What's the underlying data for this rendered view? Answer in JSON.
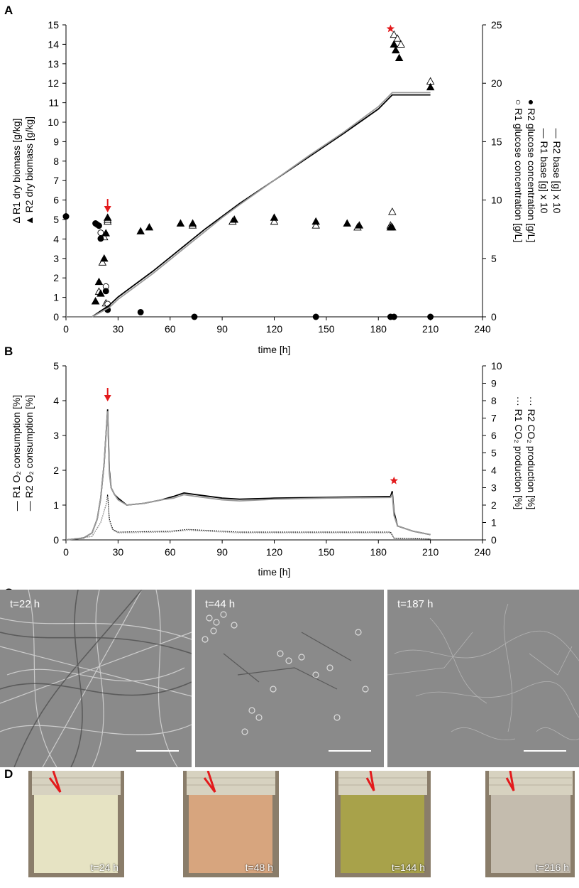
{
  "panels": {
    "A": "A",
    "B": "B",
    "C": "C",
    "D": "D"
  },
  "colors": {
    "r1": "#000000",
    "r2": "#9a9a9a",
    "accent": "#e31a1c",
    "micro_bg": "#8a8a8a",
    "photo_1": "#e6e3c3",
    "photo_2": "#d7a57e",
    "photo_3": "#a8a24a",
    "photo_4": "#c4bcae"
  },
  "chart_data": [
    {
      "id": "panel-A",
      "type": "scatter",
      "xlabel": "time [h]",
      "xlim": [
        0,
        240
      ],
      "xticks": [
        0,
        30,
        60,
        90,
        120,
        150,
        180,
        210,
        240
      ],
      "ylim_left": [
        0,
        15
      ],
      "yticks_left": [
        0,
        1,
        2,
        3,
        4,
        5,
        6,
        7,
        8,
        9,
        10,
        11,
        12,
        13,
        14,
        15
      ],
      "ylim_right": [
        0,
        25
      ],
      "yticks_right": [
        0,
        5,
        10,
        15,
        20,
        25
      ],
      "ylabel_left": [
        "Δ  R1 dry biomass [g/kg]",
        "▲  R2 dry biomass [g/kg]"
      ],
      "ylabel_right": [
        "○ R1 glucose concentration [g/L]",
        "●  R2 glucose concentration [g/L]",
        "—  R1 base [g] x 10",
        "—  R2 base [g] x 10"
      ],
      "series": [
        {
          "name": "R1 dry biomass [g/kg]",
          "marker": "open-triangle",
          "axis": "left",
          "x": [
            17,
            19,
            21,
            22,
            23,
            24,
            24,
            73,
            96,
            120,
            144,
            168,
            187,
            188,
            189,
            191,
            193,
            210
          ],
          "y": [
            0.8,
            1.3,
            2.8,
            4.1,
            0.7,
            4.9,
            5.0,
            4.7,
            4.9,
            4.9,
            4.7,
            4.6,
            4.7,
            5.4,
            14.5,
            14.3,
            14.0,
            12.1
          ]
        },
        {
          "name": "R2 dry biomass [g/kg]",
          "marker": "filled-triangle",
          "axis": "left",
          "x": [
            17,
            19,
            20,
            22,
            23,
            24,
            43,
            48,
            66,
            73,
            97,
            120,
            144,
            162,
            169,
            187,
            188,
            189,
            190,
            192,
            210
          ],
          "y": [
            0.8,
            1.8,
            1.2,
            3.0,
            4.3,
            5.1,
            4.4,
            4.6,
            4.8,
            4.8,
            5.0,
            5.1,
            4.9,
            4.8,
            4.7,
            4.6,
            4.6,
            14.0,
            13.7,
            13.3,
            11.8
          ]
        },
        {
          "name": "R1 glucose concentration [g/L]",
          "marker": "open-circle",
          "axis": "right",
          "x": [
            0,
            18,
            20,
            23,
            24
          ],
          "y": [
            8.6,
            7.9,
            7.2,
            2.6,
            1.1
          ]
        },
        {
          "name": "R2 glucose concentration [g/L]",
          "marker": "filled-circle",
          "axis": "right",
          "x": [
            0,
            17,
            19,
            20,
            23,
            24,
            43,
            74,
            144,
            187,
            189,
            210
          ],
          "y": [
            8.6,
            8.0,
            7.8,
            6.7,
            2.2,
            0.6,
            0.4,
            0.0,
            0.0,
            0.0,
            0.0,
            0.0
          ]
        },
        {
          "name": "R1 base [g] x 10",
          "marker": "line",
          "axis": "right",
          "x": [
            0,
            15,
            20,
            25,
            30,
            40,
            50,
            60,
            70,
            80,
            90,
            100,
            120,
            140,
            160,
            180,
            188,
            210
          ],
          "y": [
            0,
            0,
            0.5,
            1.0,
            1.7,
            2.8,
            3.9,
            5.1,
            6.3,
            7.5,
            8.6,
            9.7,
            11.7,
            13.7,
            15.7,
            17.8,
            19.0,
            19.0
          ]
        },
        {
          "name": "R2 base [g] x 10",
          "marker": "line",
          "axis": "right",
          "x": [
            0,
            15,
            20,
            25,
            30,
            40,
            50,
            60,
            70,
            80,
            90,
            100,
            120,
            140,
            160,
            180,
            188,
            210
          ],
          "y": [
            0,
            0,
            0.4,
            0.8,
            1.5,
            2.6,
            3.7,
            4.9,
            6.1,
            7.3,
            8.5,
            9.6,
            11.7,
            13.8,
            15.8,
            18.0,
            19.2,
            19.2
          ]
        }
      ],
      "annotations": [
        {
          "type": "red-arrow",
          "x": 24,
          "y": 5.4
        },
        {
          "type": "red-star",
          "x": 187,
          "y": 14.8
        }
      ]
    },
    {
      "id": "panel-B",
      "type": "line",
      "xlabel": "time [h]",
      "xlim": [
        0,
        240
      ],
      "xticks": [
        0,
        30,
        60,
        90,
        120,
        150,
        180,
        210,
        240
      ],
      "ylim_left": [
        0,
        5
      ],
      "yticks_left": [
        0,
        1,
        2,
        3,
        4,
        5
      ],
      "ylim_right": [
        0,
        10
      ],
      "yticks_right": [
        0,
        1,
        2,
        3,
        4,
        5,
        6,
        7,
        8,
        9,
        10
      ],
      "ylabel_left": [
        "—  R1 O₂ consumption [%]",
        "—  R2 O₂ consumption [%]"
      ],
      "ylabel_right": [
        "···  R1 CO₂ production [%]",
        "···  R2 CO₂ production [%]"
      ],
      "series": [
        {
          "name": "R1 O2 consumption [%]",
          "axis": "left",
          "x": [
            0,
            10,
            15,
            18,
            20,
            22,
            23,
            24,
            25,
            26,
            28,
            30,
            35,
            45,
            55,
            62,
            68,
            75,
            90,
            100,
            120,
            150,
            187,
            188,
            189,
            191,
            200,
            210
          ],
          "y": [
            0,
            0.05,
            0.2,
            0.6,
            1.2,
            2.2,
            3.0,
            3.75,
            2.0,
            1.5,
            1.3,
            1.2,
            1.0,
            1.05,
            1.15,
            1.25,
            1.35,
            1.3,
            1.2,
            1.17,
            1.2,
            1.22,
            1.25,
            1.4,
            0.8,
            0.4,
            0.25,
            0.15
          ]
        },
        {
          "name": "R2 O2 consumption [%]",
          "axis": "left",
          "x": [
            0,
            10,
            15,
            18,
            20,
            22,
            23,
            24,
            25,
            26,
            28,
            30,
            35,
            45,
            55,
            62,
            68,
            75,
            90,
            100,
            120,
            150,
            187,
            188,
            189,
            191,
            200,
            210
          ],
          "y": [
            0,
            0.05,
            0.2,
            0.6,
            1.2,
            2.2,
            3.0,
            3.7,
            1.9,
            1.5,
            1.3,
            1.15,
            1.0,
            1.05,
            1.15,
            1.2,
            1.3,
            1.25,
            1.15,
            1.12,
            1.17,
            1.2,
            1.22,
            1.3,
            0.7,
            0.4,
            0.25,
            0.15
          ]
        },
        {
          "name": "R1 CO2 production [%]",
          "axis": "right",
          "x": [
            0,
            15,
            20,
            23,
            24,
            25,
            27,
            30,
            60,
            70,
            100,
            150,
            187,
            189,
            210
          ],
          "y": [
            0,
            0.2,
            1.0,
            2.0,
            2.6,
            1.2,
            0.6,
            0.45,
            0.5,
            0.6,
            0.45,
            0.45,
            0.45,
            0.1,
            0.05
          ]
        },
        {
          "name": "R2 CO2 production [%]",
          "axis": "right",
          "x": [
            0,
            15,
            20,
            23,
            24,
            25,
            27,
            30,
            60,
            70,
            100,
            150,
            187,
            189,
            210
          ],
          "y": [
            0,
            0.2,
            1.0,
            2.0,
            2.5,
            1.1,
            0.55,
            0.4,
            0.45,
            0.55,
            0.4,
            0.4,
            0.4,
            0.1,
            0.05
          ]
        }
      ],
      "annotations": [
        {
          "type": "red-arrow",
          "x": 24,
          "y": 4.0
        },
        {
          "type": "red-star",
          "x": 189,
          "y": 1.7
        }
      ]
    }
  ],
  "microscopy": [
    {
      "label": "t=22 h"
    },
    {
      "label": "t=44 h"
    },
    {
      "label": "t=187 h"
    }
  ],
  "photos": [
    {
      "label": "t=24 h"
    },
    {
      "label": "t=48 h"
    },
    {
      "label": "t=144 h"
    },
    {
      "label": "t=216 h"
    }
  ]
}
